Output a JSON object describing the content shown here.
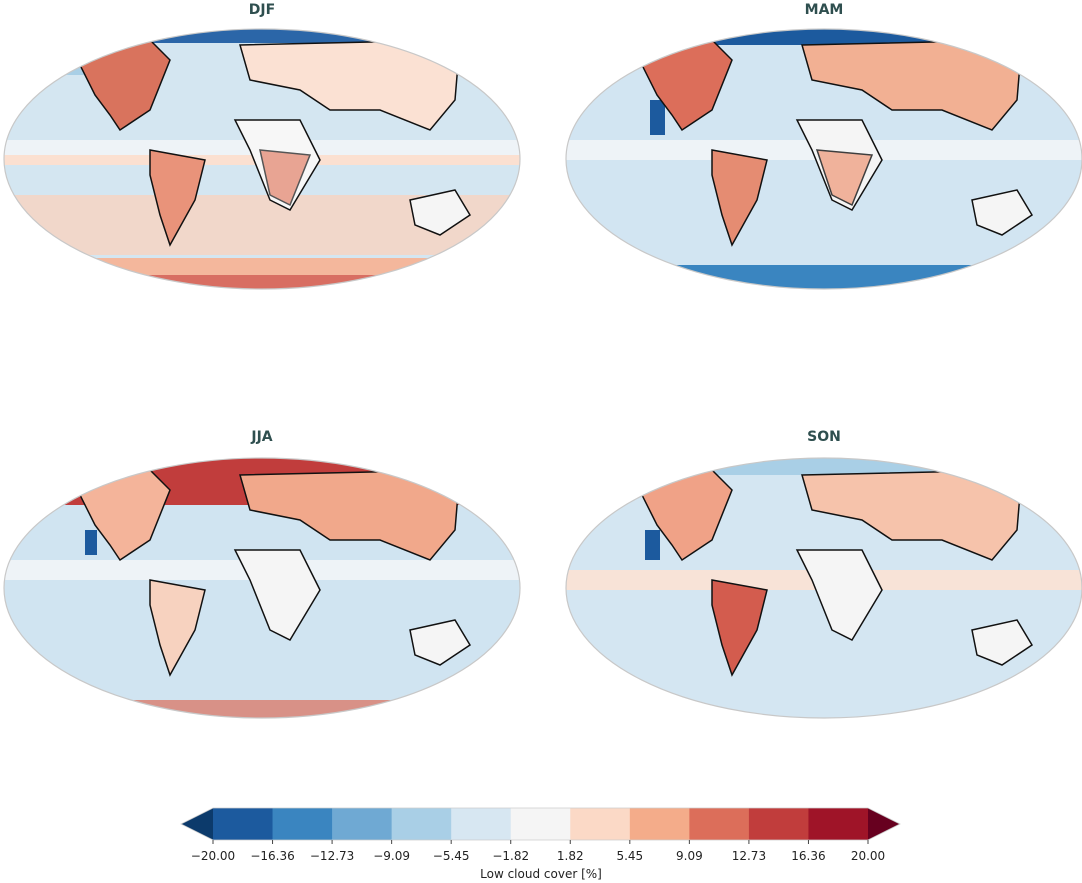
{
  "panels": [
    {
      "title": "DJF",
      "pattern": "djf"
    },
    {
      "title": "MAM",
      "pattern": "mam"
    },
    {
      "title": "JJA",
      "pattern": "jja"
    },
    {
      "title": "SON",
      "pattern": "son"
    }
  ],
  "colorbar": {
    "label": "Low cloud cover [%]",
    "ticks": [
      "−20.00",
      "−16.36",
      "−12.73",
      "−9.09",
      "−5.45",
      "−1.82",
      "1.82",
      "5.45",
      "9.09",
      "12.73",
      "16.36",
      "20.00"
    ],
    "colors": [
      "#1c5a9e",
      "#3a85c0",
      "#6fa9d3",
      "#a9cfe6",
      "#d7e7f2",
      "#f5f5f5",
      "#fbd9c6",
      "#f4ac8a",
      "#dc6e5a",
      "#c13d3c",
      "#9f1428"
    ],
    "under_color": "#0c3a6b",
    "over_color": "#67001f"
  }
}
